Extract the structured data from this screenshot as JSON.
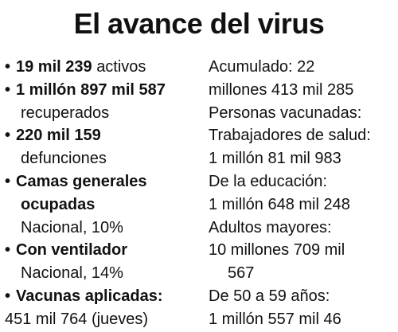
{
  "title": "El avance del virus",
  "left": {
    "bullet": "•",
    "active_value": "19 mil 239",
    "active_label": "activos",
    "recovered_value": "1 millón 897 mil 587",
    "recovered_label": "recuperados",
    "deaths_value": "220 mil 159",
    "deaths_label": "defunciones",
    "general_beds_label_1": "Camas generales",
    "general_beds_label_2": "ocupadas",
    "general_beds_value": "Nacional, 10%",
    "ventilator_label": "Con ventilador",
    "ventilator_value": "Nacional, 14%",
    "vaccines_label": "Vacunas aplicadas:",
    "vaccines_value": "451 mil 764 (jueves)"
  },
  "right": {
    "lines": [
      "Acumulado: 22",
      "millones 413 mil 285",
      "Personas vacunadas:",
      "Trabajadores de salud:",
      "1 millón 81 mil 983",
      "De la educación:",
      "1 millón 648 mil 248",
      "Adultos mayores:",
      "10 millones 709 mil",
      "567",
      "De 50 a 59 años:",
      "1 millón 557 mil 46"
    ]
  }
}
